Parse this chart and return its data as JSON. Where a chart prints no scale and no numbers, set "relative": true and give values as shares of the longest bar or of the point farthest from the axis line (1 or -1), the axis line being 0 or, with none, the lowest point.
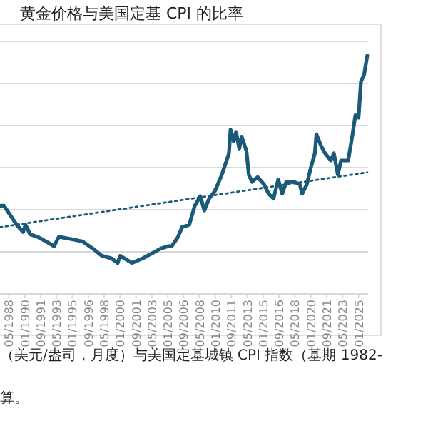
{
  "chart_data": {
    "type": "line",
    "title": "黄金价格与美国定基 CPI 的比率",
    "relative": true,
    "grid": "y",
    "xlim": [
      "1987-06",
      "2026-01"
    ],
    "xticks": [
      {
        "value": "1988-05",
        "label": "05/1988"
      },
      {
        "value": "1990-01",
        "label": "01/1990"
      },
      {
        "value": "1991-09",
        "label": "09/1991"
      },
      {
        "value": "1993-05",
        "label": "05/1993"
      },
      {
        "value": "1995-01",
        "label": "01/1995"
      },
      {
        "value": "1996-09",
        "label": "09/1996"
      },
      {
        "value": "1998-05",
        "label": "05/1998"
      },
      {
        "value": "2000-01",
        "label": "01/2000"
      },
      {
        "value": "2001-09",
        "label": "09/2001"
      },
      {
        "value": "2003-05",
        "label": "05/2003"
      },
      {
        "value": "2005-01",
        "label": "01/2005"
      },
      {
        "value": "2006-09",
        "label": "09/2006"
      },
      {
        "value": "2008-05",
        "label": "05/2008"
      },
      {
        "value": "2010-01",
        "label": "01/2010"
      },
      {
        "value": "2011-09",
        "label": "09/2011"
      },
      {
        "value": "2013-05",
        "label": "05/2013"
      },
      {
        "value": "2015-01",
        "label": "01/2015"
      },
      {
        "value": "2016-09",
        "label": "09/2016"
      },
      {
        "value": "2018-05",
        "label": "05/2018"
      },
      {
        "value": "2020-01",
        "label": "01/2020"
      },
      {
        "value": "2021-09",
        "label": "09/2021"
      },
      {
        "value": "2023-05",
        "label": "05/2023"
      },
      {
        "value": "2025-01",
        "label": "01/2025"
      }
    ],
    "annotations": [
      "（美元/盎司，月度）与美国定基城镇 CPI 指数（基期 1982-",
      "算。"
    ],
    "series": [
      {
        "color": "#1a5a78",
        "line_style": "solid",
        "x": [
          "1987-06",
          "1987-11",
          "1988-05",
          "1989-03",
          "1989-11",
          "1990-02",
          "1990-08",
          "1991-05",
          "1992-04",
          "1993-02",
          "1993-08",
          "1994-12",
          "1996-02",
          "1997-03",
          "1998-02",
          "1999-02",
          "1999-10",
          "2000-01",
          "2001-04",
          "2002-06",
          "2003-05",
          "2004-04",
          "2005-01",
          "2005-06",
          "2006-02",
          "2006-07",
          "2007-04",
          "2007-11",
          "2008-06",
          "2008-11",
          "2009-05",
          "2009-12",
          "2010-04",
          "2010-09",
          "2011-01",
          "2011-06",
          "2011-08",
          "2011-12",
          "2012-03",
          "2012-07",
          "2012-10",
          "2013-04",
          "2013-07",
          "2013-11",
          "2014-06",
          "2015-02",
          "2015-08",
          "2016-02",
          "2016-08",
          "2017-01",
          "2017-06",
          "2018-04",
          "2018-11",
          "2019-02",
          "2019-08",
          "2020-01",
          "2020-06",
          "2020-08",
          "2021-02",
          "2021-07",
          "2022-02",
          "2022-06",
          "2022-11",
          "2023-03",
          "2023-12",
          "2024-05",
          "2024-09",
          "2025-01",
          "2025-04",
          "2025-08",
          "2025-12"
        ],
        "values": [
          0.37,
          0.37,
          0.34,
          0.29,
          0.26,
          0.29,
          0.25,
          0.24,
          0.22,
          0.2,
          0.24,
          0.23,
          0.22,
          0.19,
          0.16,
          0.15,
          0.13,
          0.16,
          0.13,
          0.15,
          0.17,
          0.19,
          0.2,
          0.2,
          0.24,
          0.28,
          0.29,
          0.37,
          0.41,
          0.35,
          0.4,
          0.43,
          0.46,
          0.5,
          0.54,
          0.59,
          0.69,
          0.64,
          0.68,
          0.61,
          0.66,
          0.6,
          0.5,
          0.47,
          0.49,
          0.46,
          0.42,
          0.4,
          0.48,
          0.42,
          0.47,
          0.47,
          0.46,
          0.42,
          0.46,
          0.53,
          0.59,
          0.67,
          0.62,
          0.59,
          0.56,
          0.59,
          0.5,
          0.56,
          0.56,
          0.66,
          0.75,
          0.74,
          0.89,
          0.92,
          1
        ]
      },
      {
        "color": "#1a5a78",
        "line_style": "dotted",
        "x": [
          "1987-06",
          "2025-12"
        ],
        "values": [
          0.28,
          0.51
        ]
      }
    ]
  }
}
